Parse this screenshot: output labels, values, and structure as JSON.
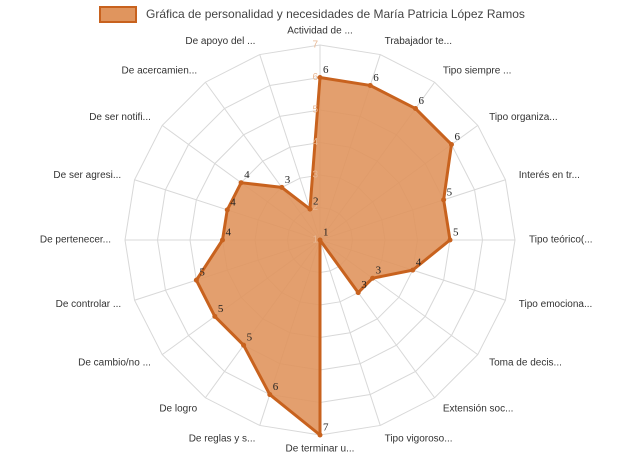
{
  "chart_data": {
    "type": "radar",
    "categories": [
      "Actividad de ...",
      "Trabajador te...",
      "Tipo siempre ...",
      "Tipo organiza...",
      "Interés en tr...",
      "Tipo teórico(...",
      "Tipo emociona...",
      "Toma de decis...",
      "Extensión soc...",
      "Tipo vigoroso...",
      "De terminar u...",
      "De reglas y s...",
      "De logro",
      "De cambio/no ...",
      "De controlar ...",
      "De pertenecer...",
      "De ser agresi...",
      "De ser notifi...",
      "De acercamien...",
      "De apoyo del ..."
    ],
    "series": [
      {
        "name": "Gráfica de personalidad y necesidades de María Patricia López Ramos",
        "color": "#c8621e",
        "fill": "#e0955e",
        "values": [
          6,
          6,
          6,
          6,
          5,
          5,
          4,
          3,
          3,
          1,
          7,
          6,
          5,
          5,
          5,
          4,
          4,
          4,
          3,
          2
        ]
      }
    ],
    "ylim": [
      1,
      7
    ],
    "yticks": [
      1,
      2,
      3,
      4,
      5,
      6,
      7
    ],
    "grid": true,
    "legend": "top"
  }
}
